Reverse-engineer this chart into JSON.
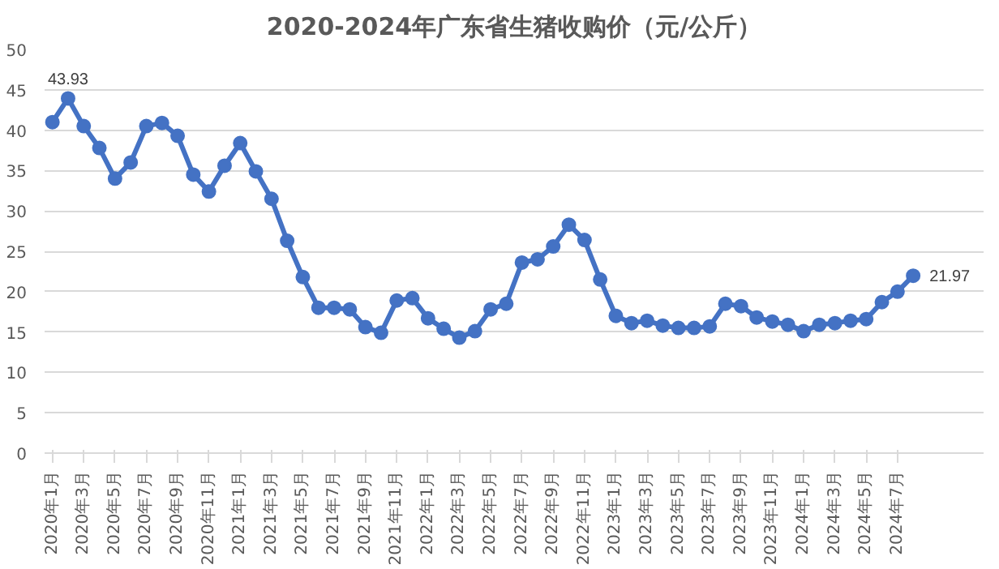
{
  "chart_data": {
    "type": "line",
    "title": "2020-2024年广东省生猪收购价（元/公斤）",
    "categories": [
      "2020年1月",
      null,
      "2020年3月",
      null,
      "2020年5月",
      null,
      "2020年7月",
      null,
      "2020年9月",
      null,
      "2020年11月",
      null,
      "2021年1月",
      null,
      "2021年3月",
      null,
      "2021年5月",
      null,
      "2021年7月",
      null,
      "2021年9月",
      null,
      "2021年11月",
      null,
      "2022年1月",
      null,
      "2022年3月",
      null,
      "2022年5月",
      null,
      "2022年7月",
      null,
      "2022年9月",
      null,
      "2022年11月",
      null,
      "2023年1月",
      null,
      "2023年3月",
      null,
      "2023年5月",
      null,
      "2023年7月",
      null,
      "2023年9月",
      null,
      "2023年11月",
      null,
      "2024年1月",
      null,
      "2024年3月",
      null,
      "2024年5月",
      null,
      "2024年7月",
      null
    ],
    "series": [
      {
        "color": "#4472c4",
        "values": [
          41.0,
          43.93,
          40.5,
          37.8,
          34.0,
          36.0,
          40.5,
          40.9,
          39.3,
          34.5,
          32.4,
          35.6,
          38.4,
          34.9,
          31.5,
          26.3,
          21.8,
          18.0,
          18.0,
          17.8,
          15.6,
          14.9,
          18.9,
          19.2,
          16.7,
          15.4,
          14.3,
          15.1,
          17.8,
          18.5,
          23.6,
          24.0,
          25.6,
          28.3,
          26.4,
          21.5,
          17.0,
          16.1,
          16.4,
          15.8,
          15.5,
          15.5,
          15.7,
          18.5,
          18.2,
          16.8,
          16.3,
          15.9,
          15.1,
          15.9,
          16.1,
          16.4,
          16.6,
          18.7,
          20.0,
          21.97
        ],
        "value_labels": [
          null,
          "43.93",
          null,
          null,
          null,
          null,
          null,
          null,
          null,
          null,
          null,
          null,
          null,
          null,
          null,
          null,
          null,
          null,
          null,
          null,
          null,
          null,
          null,
          null,
          null,
          null,
          null,
          null,
          null,
          null,
          null,
          null,
          null,
          null,
          null,
          null,
          null,
          null,
          null,
          null,
          null,
          null,
          null,
          null,
          null,
          null,
          null,
          null,
          null,
          null,
          null,
          null,
          null,
          null,
          null,
          "21.97"
        ]
      }
    ],
    "ylim": [
      0,
      50
    ],
    "yticks": [
      0,
      5,
      10,
      15,
      20,
      25,
      30,
      35,
      40,
      45,
      50
    ],
    "grid": "y",
    "marker": "circle",
    "line_style": "solid"
  }
}
